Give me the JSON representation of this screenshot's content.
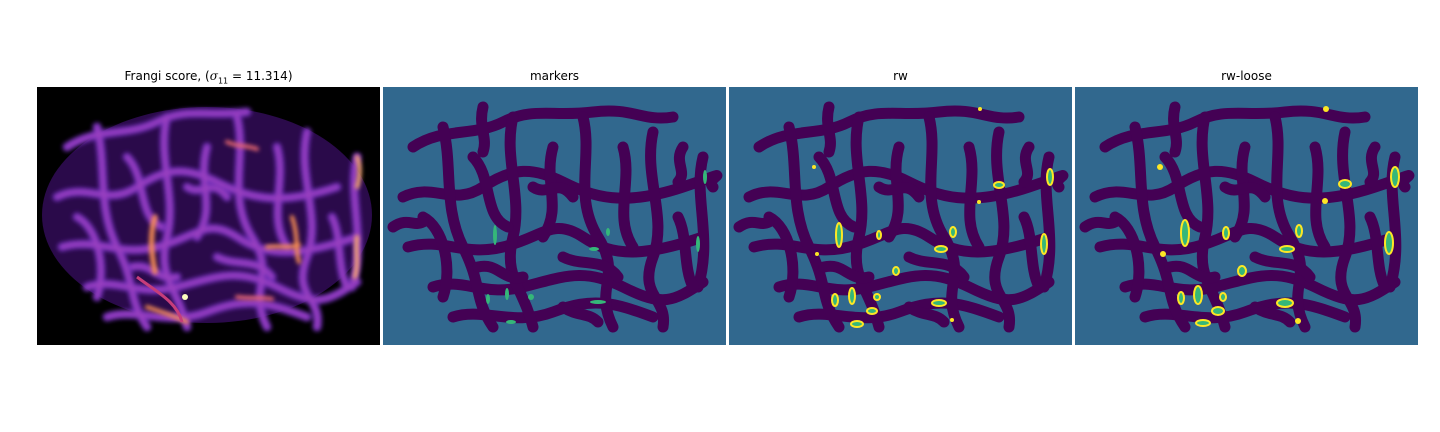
{
  "figure": {
    "panels": [
      {
        "key": "frangi",
        "title_prefix": "Frangi score, (",
        "title_sigma": "σ",
        "title_sub": "11",
        "title_suffix": " = 11.314)",
        "background": "#000000",
        "colormap": "magma"
      },
      {
        "key": "markers",
        "title": "markers",
        "background": "#31688e",
        "colormap": "viridis"
      },
      {
        "key": "rw",
        "title": "rw",
        "background": "#31688e",
        "colormap": "viridis"
      },
      {
        "key": "rw_loose",
        "title": "rw-loose",
        "background": "#31688e",
        "colormap": "viridis"
      }
    ],
    "colors": {
      "dark": "#440154",
      "mid": "#31688e",
      "green": "#35b779",
      "yellow": "#fde725",
      "magma_purple": "#5b1f9c",
      "magma_pink": "#c63d7a",
      "magma_orange": "#f98e52",
      "magma_yellow": "#fcfdbf"
    }
  }
}
